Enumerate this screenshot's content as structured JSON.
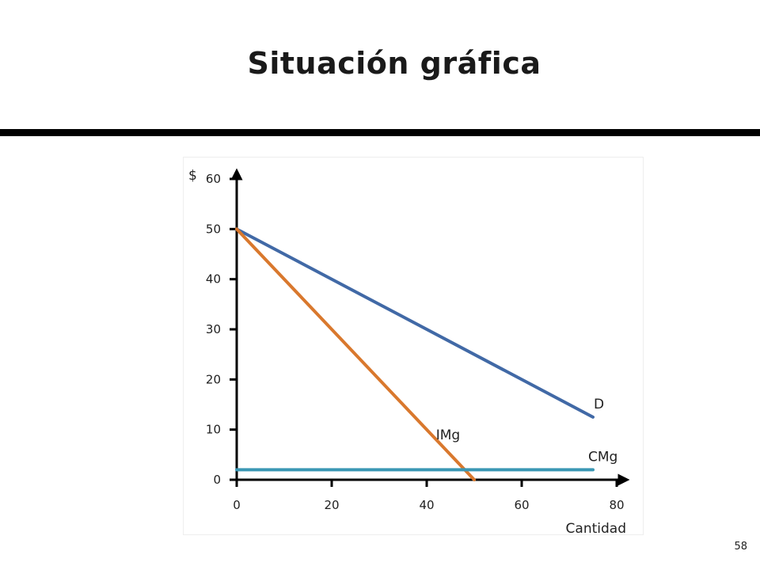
{
  "slide": {
    "title": "Situación gráfica",
    "page_number": "58"
  },
  "chart_data": {
    "type": "line",
    "title": "",
    "xlabel": "Cantidad",
    "ylabel": "$",
    "xlim": [
      0,
      80
    ],
    "ylim": [
      0,
      60
    ],
    "x_ticks": [
      0,
      20,
      40,
      60,
      80
    ],
    "y_ticks": [
      0,
      10,
      20,
      30,
      40,
      50,
      60
    ],
    "grid": false,
    "series": [
      {
        "name": "D",
        "color": "#4169a6",
        "points": [
          [
            0,
            50
          ],
          [
            75,
            12.5
          ]
        ]
      },
      {
        "name": "IMg",
        "color": "#d9782d",
        "points": [
          [
            0,
            50
          ],
          [
            50,
            0
          ]
        ]
      },
      {
        "name": "CMg",
        "color": "#3a97b4",
        "points": [
          [
            0,
            2
          ],
          [
            75,
            2
          ]
        ]
      }
    ]
  }
}
